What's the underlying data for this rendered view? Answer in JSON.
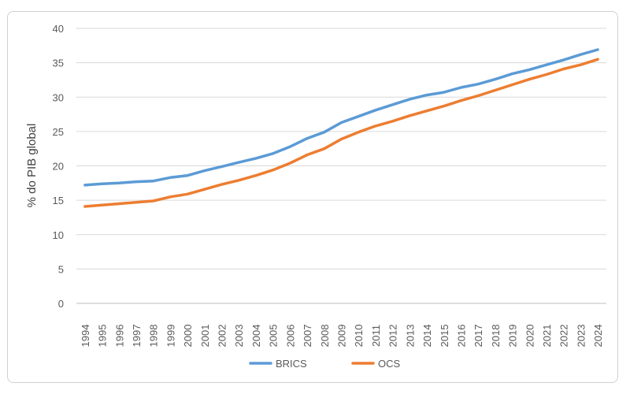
{
  "chart_data": {
    "type": "line",
    "title": "",
    "xlabel": "",
    "ylabel": "% do PIB global",
    "ylim": [
      0,
      40
    ],
    "yticks": [
      0,
      5,
      10,
      15,
      20,
      25,
      30,
      35,
      40
    ],
    "grid": true,
    "legend_position": "bottom",
    "x": [
      "1994",
      "1995",
      "1996",
      "1997",
      "1998",
      "1999",
      "2000",
      "2001",
      "2002",
      "2003",
      "2004",
      "2005",
      "2006",
      "2007",
      "2008",
      "2009",
      "2010",
      "2011",
      "2012",
      "2013",
      "2014",
      "2015",
      "2016",
      "2017",
      "2018",
      "2019",
      "2020",
      "2021",
      "2022",
      "2023",
      "2024"
    ],
    "series": [
      {
        "name": "BRICS",
        "color": "#5B9BD5",
        "values": [
          17.2,
          17.4,
          17.5,
          17.7,
          17.8,
          18.3,
          18.6,
          19.3,
          19.9,
          20.5,
          21.1,
          21.8,
          22.8,
          24.0,
          24.9,
          26.3,
          27.2,
          28.1,
          28.9,
          29.7,
          30.3,
          30.7,
          31.4,
          31.9,
          32.6,
          33.4,
          34.0,
          34.7,
          35.4,
          36.2,
          36.9
        ]
      },
      {
        "name": "OCS",
        "color": "#ED7D31",
        "values": [
          14.1,
          14.3,
          14.5,
          14.7,
          14.9,
          15.5,
          15.9,
          16.6,
          17.3,
          17.9,
          18.6,
          19.4,
          20.4,
          21.6,
          22.5,
          23.9,
          24.9,
          25.8,
          26.5,
          27.3,
          28.0,
          28.7,
          29.5,
          30.2,
          31.0,
          31.8,
          32.6,
          33.3,
          34.1,
          34.7,
          35.5
        ]
      }
    ]
  }
}
